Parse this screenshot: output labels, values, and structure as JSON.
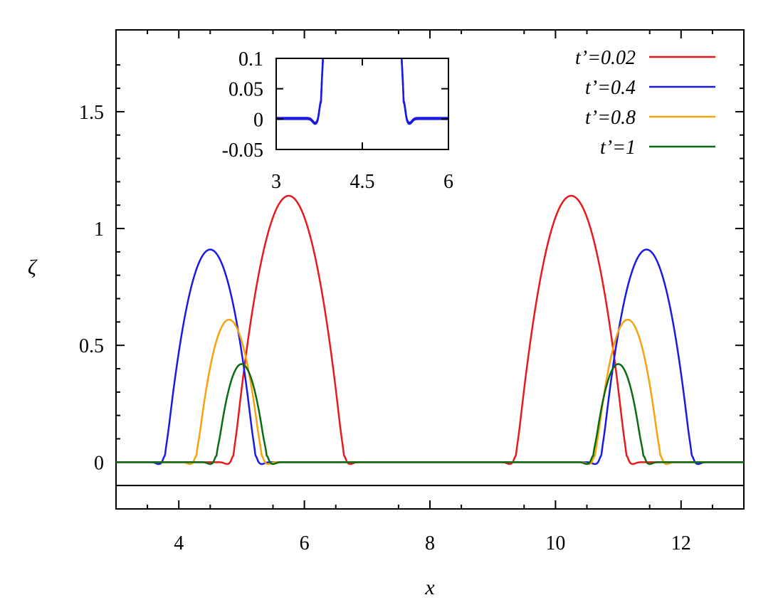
{
  "chart_data": [
    {
      "type": "line",
      "title": "",
      "xlabel": "x",
      "ylabel": "ζ",
      "xlim": [
        3,
        13
      ],
      "ylim": [
        -0.2,
        1.85
      ],
      "grid": false,
      "legend_position": "top-right",
      "xticks": [
        4,
        6,
        8,
        10,
        12
      ],
      "xtick_labels": [
        "4",
        "6",
        "8",
        "10",
        "12"
      ],
      "yticks": [
        0,
        0.5,
        1,
        1.5
      ],
      "ytick_labels": [
        "0",
        "0.5",
        "1",
        "1.5"
      ],
      "reference_line_y": -0.1,
      "series": [
        {
          "name": "t’=0.02",
          "color": "#e8191c",
          "amplitude": 1.14,
          "peaks": [
            5.75,
            10.25
          ],
          "half_width": 0.88
        },
        {
          "name": "t’=0.4",
          "color": "#1a1ae6",
          "amplitude": 0.91,
          "peaks": [
            4.5,
            11.45
          ],
          "half_width": 0.72
        },
        {
          "name": "t’=0.8",
          "color": "#f5a30f",
          "amplitude": 0.61,
          "peaks": [
            4.8,
            11.15
          ],
          "half_width": 0.52
        },
        {
          "name": "t’=1",
          "color": "#0b6b12",
          "amplitude": 0.42,
          "peaks": [
            5.0,
            11.0
          ],
          "half_width": 0.4
        }
      ]
    },
    {
      "type": "line",
      "inset": true,
      "title": "",
      "xlabel": "",
      "ylabel": "",
      "xlim": [
        3,
        6
      ],
      "ylim": [
        -0.05,
        0.1
      ],
      "xticks": [
        3,
        4.5,
        6
      ],
      "xtick_labels": [
        "3",
        "4.5",
        "6"
      ],
      "yticks": [
        0.1,
        0.05,
        0,
        -0.05
      ],
      "ytick_labels": [
        "0.1",
        "0.05",
        "0",
        "-0.05"
      ],
      "series": [
        {
          "color": "#1a1ae6",
          "amplitude": 0.91,
          "peaks": [
            4.5
          ],
          "half_width": 0.72
        }
      ]
    }
  ]
}
